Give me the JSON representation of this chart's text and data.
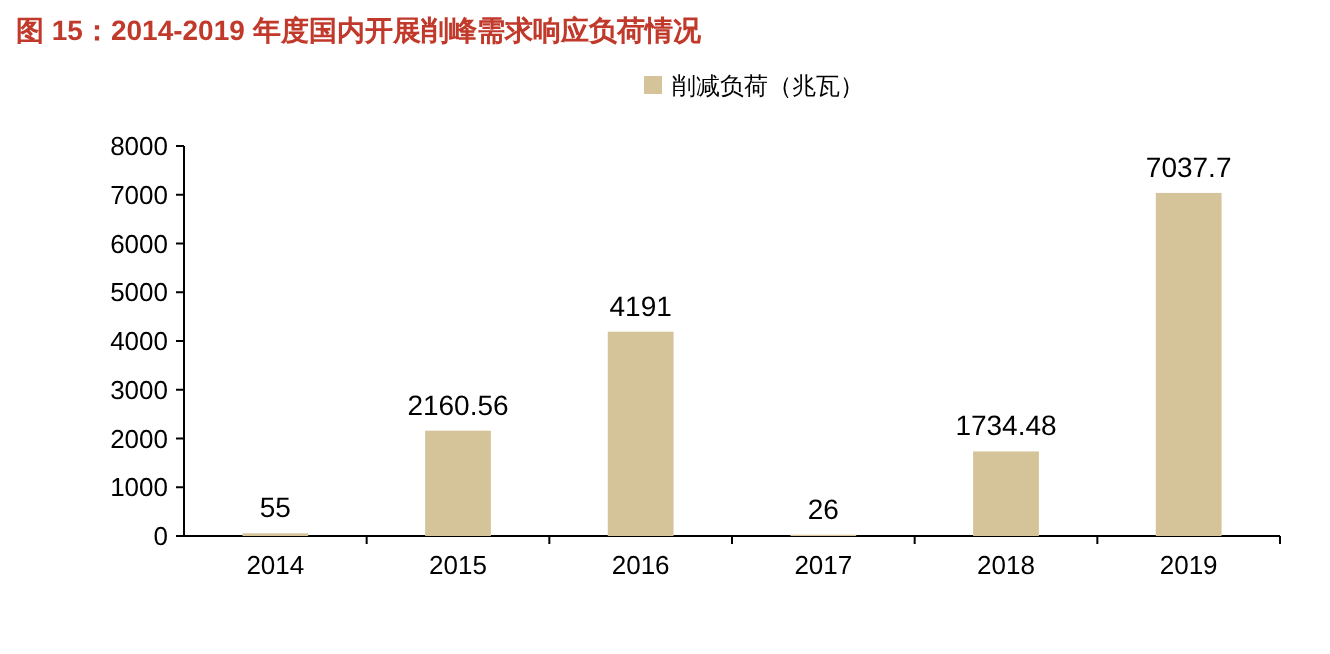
{
  "chart_data": {
    "type": "bar",
    "title": "图 15：2014-2019 年度国内开展削峰需求响应负荷情况",
    "categories": [
      "2014",
      "2015",
      "2016",
      "2017",
      "2018",
      "2019"
    ],
    "series": [
      {
        "name": "削减负荷（兆瓦）",
        "color": "#d5c49a",
        "values": [
          55,
          2160.56,
          4191,
          26,
          1734.48,
          7037.7
        ]
      }
    ],
    "data_labels": true,
    "ylim": [
      0,
      8000
    ],
    "yticks": [
      0,
      1000,
      2000,
      3000,
      4000,
      5000,
      6000,
      7000,
      8000
    ],
    "legend": "top",
    "grid": false
  }
}
